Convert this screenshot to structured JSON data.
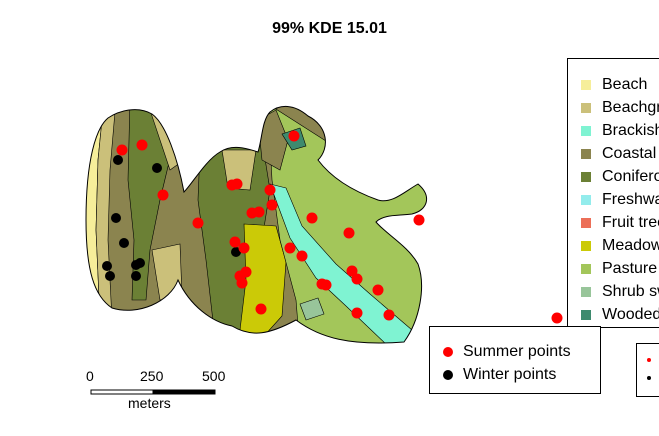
{
  "title": "99% KDE 15.01",
  "legend": {
    "items": [
      {
        "label": "Beach",
        "color": "#f6ee9a"
      },
      {
        "label": "Beachgrass",
        "color": "#cbc07a"
      },
      {
        "label": "Brackish marsh",
        "color": "#7ff3d2"
      },
      {
        "label": "Coastal dune",
        "color": "#8b844f"
      },
      {
        "label": "Coniferous forest",
        "color": "#6b8035"
      },
      {
        "label": "Freshwater marsh",
        "color": "#93ecec"
      },
      {
        "label": "Fruit tree",
        "color": "#ec6f58"
      },
      {
        "label": "Meadow",
        "color": "#cbca07"
      },
      {
        "label": "Pasture",
        "color": "#a3c65a"
      },
      {
        "label": "Shrub swamp",
        "color": "#98c59a"
      },
      {
        "label": "Wooded swamp",
        "color": "#3e8a6e"
      }
    ]
  },
  "points_legend": {
    "summer": {
      "label": "Summer points",
      "color": "#ff0000"
    },
    "winter": {
      "label": "Winter points",
      "color": "#000000"
    }
  },
  "scale_bar": {
    "ticks": [
      "0",
      "250",
      "500"
    ],
    "unit": "meters"
  }
}
